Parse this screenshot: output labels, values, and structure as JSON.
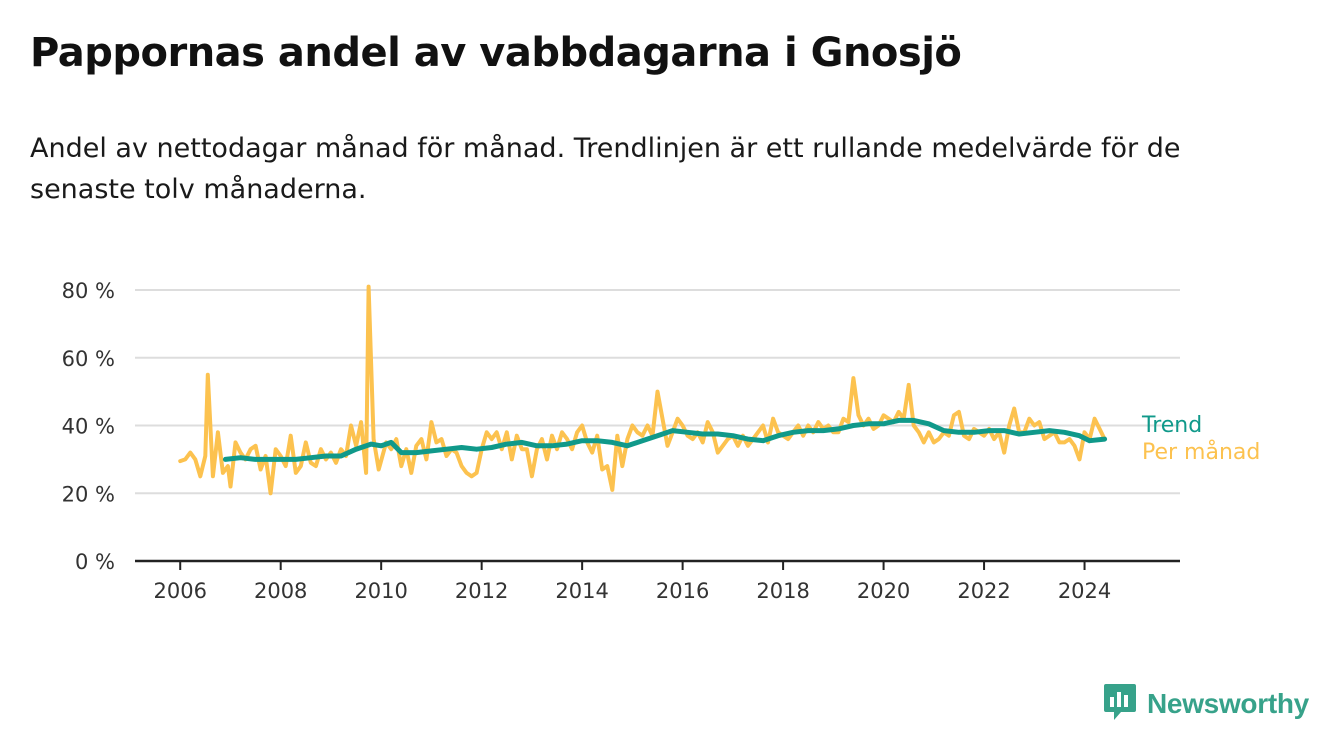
{
  "title": "Pappornas andel av vabbdagarna i Gnosjö",
  "subtitle": "Andel av nettodagar månad för månad. Trendlinjen är ett rullande medelvärde för de senaste tolv månaderna.",
  "brand": {
    "name": "Newsworthy",
    "icon": "newsworthy-logo-icon",
    "color": "#37a28a"
  },
  "colors": {
    "monthly": "#fcc24f",
    "trend": "#10998a",
    "grid": "#dddddd",
    "axis": "#222222"
  },
  "chart_data": {
    "type": "line",
    "title": "Pappornas andel av vabbdagarna i Gnosjö",
    "xlabel": "",
    "ylabel": "",
    "x_ticks": [
      "2006",
      "2008",
      "2010",
      "2012",
      "2014",
      "2016",
      "2018",
      "2020",
      "2022",
      "2024"
    ],
    "y_ticks": [
      "0 %",
      "20 %",
      "40 %",
      "60 %",
      "80 %"
    ],
    "xlim": [
      2005.1,
      2025.9
    ],
    "ylim": [
      0,
      80
    ],
    "grid": true,
    "legend": "inline-right",
    "series": [
      {
        "name": "Per månad",
        "color": "#fcc24f",
        "points": [
          [
            2006.0,
            29.5
          ],
          [
            2006.1,
            30
          ],
          [
            2006.2,
            32
          ],
          [
            2006.3,
            30
          ],
          [
            2006.4,
            25
          ],
          [
            2006.5,
            31
          ],
          [
            2006.55,
            55
          ],
          [
            2006.65,
            25
          ],
          [
            2006.75,
            38
          ],
          [
            2006.85,
            26
          ],
          [
            2006.95,
            28
          ],
          [
            2007.0,
            22
          ],
          [
            2007.1,
            35
          ],
          [
            2007.2,
            32
          ],
          [
            2007.3,
            30
          ],
          [
            2007.4,
            33
          ],
          [
            2007.5,
            34
          ],
          [
            2007.6,
            27
          ],
          [
            2007.7,
            31
          ],
          [
            2007.8,
            20
          ],
          [
            2007.9,
            33
          ],
          [
            2008.0,
            31
          ],
          [
            2008.1,
            28
          ],
          [
            2008.2,
            37
          ],
          [
            2008.3,
            26
          ],
          [
            2008.4,
            28
          ],
          [
            2008.5,
            35
          ],
          [
            2008.6,
            29
          ],
          [
            2008.7,
            28
          ],
          [
            2008.8,
            33
          ],
          [
            2008.9,
            30
          ],
          [
            2009.0,
            32
          ],
          [
            2009.1,
            29
          ],
          [
            2009.2,
            33
          ],
          [
            2009.3,
            31
          ],
          [
            2009.4,
            40
          ],
          [
            2009.5,
            34
          ],
          [
            2009.6,
            41
          ],
          [
            2009.7,
            26
          ],
          [
            2009.75,
            81
          ],
          [
            2009.85,
            36
          ],
          [
            2009.95,
            27
          ],
          [
            2010.1,
            35
          ],
          [
            2010.2,
            33
          ],
          [
            2010.3,
            36
          ],
          [
            2010.4,
            28
          ],
          [
            2010.5,
            33
          ],
          [
            2010.6,
            26
          ],
          [
            2010.7,
            34
          ],
          [
            2010.8,
            36
          ],
          [
            2010.9,
            30
          ],
          [
            2011.0,
            41
          ],
          [
            2011.1,
            35
          ],
          [
            2011.2,
            36
          ],
          [
            2011.3,
            31
          ],
          [
            2011.4,
            33
          ],
          [
            2011.5,
            32
          ],
          [
            2011.6,
            28
          ],
          [
            2011.7,
            26
          ],
          [
            2011.8,
            25
          ],
          [
            2011.9,
            26
          ],
          [
            2012.0,
            33
          ],
          [
            2012.1,
            38
          ],
          [
            2012.2,
            36
          ],
          [
            2012.3,
            38
          ],
          [
            2012.4,
            33
          ],
          [
            2012.5,
            38
          ],
          [
            2012.6,
            30
          ],
          [
            2012.7,
            37
          ],
          [
            2012.8,
            33
          ],
          [
            2012.9,
            33
          ],
          [
            2013.0,
            25
          ],
          [
            2013.1,
            33
          ],
          [
            2013.2,
            36
          ],
          [
            2013.3,
            30
          ],
          [
            2013.4,
            37
          ],
          [
            2013.5,
            33
          ],
          [
            2013.6,
            38
          ],
          [
            2013.7,
            36
          ],
          [
            2013.8,
            33
          ],
          [
            2013.9,
            38
          ],
          [
            2014.0,
            40
          ],
          [
            2014.1,
            35
          ],
          [
            2014.2,
            32
          ],
          [
            2014.3,
            37
          ],
          [
            2014.4,
            27
          ],
          [
            2014.5,
            28
          ],
          [
            2014.6,
            21
          ],
          [
            2014.7,
            37
          ],
          [
            2014.8,
            28
          ],
          [
            2014.9,
            36
          ],
          [
            2015.0,
            40
          ],
          [
            2015.1,
            38
          ],
          [
            2015.2,
            37
          ],
          [
            2015.3,
            40
          ],
          [
            2015.4,
            37
          ],
          [
            2015.5,
            50
          ],
          [
            2015.6,
            42
          ],
          [
            2015.7,
            34
          ],
          [
            2015.8,
            38
          ],
          [
            2015.9,
            42
          ],
          [
            2016.0,
            40
          ],
          [
            2016.1,
            37
          ],
          [
            2016.2,
            36
          ],
          [
            2016.3,
            38
          ],
          [
            2016.4,
            35
          ],
          [
            2016.5,
            41
          ],
          [
            2016.6,
            38
          ],
          [
            2016.7,
            32
          ],
          [
            2016.8,
            34
          ],
          [
            2016.9,
            36
          ],
          [
            2017.0,
            37
          ],
          [
            2017.1,
            34
          ],
          [
            2017.2,
            37
          ],
          [
            2017.3,
            34
          ],
          [
            2017.4,
            36
          ],
          [
            2017.5,
            38
          ],
          [
            2017.6,
            40
          ],
          [
            2017.7,
            35
          ],
          [
            2017.8,
            42
          ],
          [
            2017.9,
            38
          ],
          [
            2018.0,
            37
          ],
          [
            2018.1,
            36
          ],
          [
            2018.2,
            38
          ],
          [
            2018.3,
            40
          ],
          [
            2018.4,
            37
          ],
          [
            2018.5,
            40
          ],
          [
            2018.6,
            38
          ],
          [
            2018.7,
            41
          ],
          [
            2018.8,
            39
          ],
          [
            2018.9,
            40
          ],
          [
            2019.0,
            38
          ],
          [
            2019.1,
            38
          ],
          [
            2019.2,
            42
          ],
          [
            2019.3,
            41
          ],
          [
            2019.4,
            54
          ],
          [
            2019.5,
            43
          ],
          [
            2019.6,
            40
          ],
          [
            2019.7,
            42
          ],
          [
            2019.8,
            39
          ],
          [
            2019.9,
            40
          ],
          [
            2020.0,
            43
          ],
          [
            2020.1,
            42
          ],
          [
            2020.2,
            41
          ],
          [
            2020.3,
            44
          ],
          [
            2020.4,
            42
          ],
          [
            2020.5,
            52
          ],
          [
            2020.6,
            40
          ],
          [
            2020.7,
            38
          ],
          [
            2020.8,
            35
          ],
          [
            2020.9,
            38
          ],
          [
            2021.0,
            35
          ],
          [
            2021.1,
            36
          ],
          [
            2021.2,
            38
          ],
          [
            2021.3,
            37
          ],
          [
            2021.4,
            43
          ],
          [
            2021.5,
            44
          ],
          [
            2021.6,
            37
          ],
          [
            2021.7,
            36
          ],
          [
            2021.8,
            39
          ],
          [
            2021.9,
            38
          ],
          [
            2022.0,
            37
          ],
          [
            2022.1,
            39
          ],
          [
            2022.2,
            36
          ],
          [
            2022.3,
            38
          ],
          [
            2022.4,
            32
          ],
          [
            2022.5,
            40
          ],
          [
            2022.6,
            45
          ],
          [
            2022.7,
            38
          ],
          [
            2022.8,
            38
          ],
          [
            2022.9,
            42
          ],
          [
            2023.0,
            40
          ],
          [
            2023.1,
            41
          ],
          [
            2023.2,
            36
          ],
          [
            2023.3,
            37
          ],
          [
            2023.4,
            38
          ],
          [
            2023.5,
            35
          ],
          [
            2023.6,
            35
          ],
          [
            2023.7,
            36
          ],
          [
            2023.8,
            34
          ],
          [
            2023.9,
            30
          ],
          [
            2024.0,
            38
          ],
          [
            2024.1,
            36
          ],
          [
            2024.2,
            42
          ],
          [
            2024.3,
            39
          ],
          [
            2024.4,
            36
          ]
        ]
      },
      {
        "name": "Trend",
        "color": "#10998a",
        "points": [
          [
            2006.9,
            30
          ],
          [
            2007.2,
            30.5
          ],
          [
            2007.5,
            30
          ],
          [
            2007.8,
            30
          ],
          [
            2008.0,
            30
          ],
          [
            2008.3,
            30
          ],
          [
            2008.6,
            30.5
          ],
          [
            2008.9,
            31
          ],
          [
            2009.2,
            31
          ],
          [
            2009.5,
            33
          ],
          [
            2009.8,
            34.5
          ],
          [
            2010.0,
            34
          ],
          [
            2010.2,
            35
          ],
          [
            2010.4,
            32
          ],
          [
            2010.7,
            32
          ],
          [
            2011.0,
            32.5
          ],
          [
            2011.3,
            33
          ],
          [
            2011.6,
            33.5
          ],
          [
            2011.9,
            33
          ],
          [
            2012.2,
            33.5
          ],
          [
            2012.5,
            34.5
          ],
          [
            2012.8,
            35
          ],
          [
            2013.1,
            34
          ],
          [
            2013.4,
            34
          ],
          [
            2013.7,
            34.5
          ],
          [
            2014.0,
            35.5
          ],
          [
            2014.3,
            35.5
          ],
          [
            2014.6,
            35
          ],
          [
            2014.9,
            34
          ],
          [
            2015.2,
            35.5
          ],
          [
            2015.5,
            37
          ],
          [
            2015.8,
            38.5
          ],
          [
            2016.1,
            38
          ],
          [
            2016.4,
            37.5
          ],
          [
            2016.7,
            37.5
          ],
          [
            2017.0,
            37
          ],
          [
            2017.3,
            36
          ],
          [
            2017.6,
            35.5
          ],
          [
            2017.9,
            37
          ],
          [
            2018.2,
            38
          ],
          [
            2018.5,
            38.5
          ],
          [
            2018.8,
            38.5
          ],
          [
            2019.1,
            39
          ],
          [
            2019.4,
            40
          ],
          [
            2019.7,
            40.5
          ],
          [
            2020.0,
            40.5
          ],
          [
            2020.3,
            41.5
          ],
          [
            2020.6,
            41.5
          ],
          [
            2020.9,
            40.5
          ],
          [
            2021.2,
            38.5
          ],
          [
            2021.5,
            38
          ],
          [
            2021.8,
            38
          ],
          [
            2022.1,
            38.5
          ],
          [
            2022.4,
            38.5
          ],
          [
            2022.7,
            37.5
          ],
          [
            2023.0,
            38
          ],
          [
            2023.3,
            38.5
          ],
          [
            2023.6,
            38
          ],
          [
            2023.9,
            37
          ],
          [
            2024.1,
            35.5
          ],
          [
            2024.4,
            36
          ]
        ]
      }
    ]
  }
}
